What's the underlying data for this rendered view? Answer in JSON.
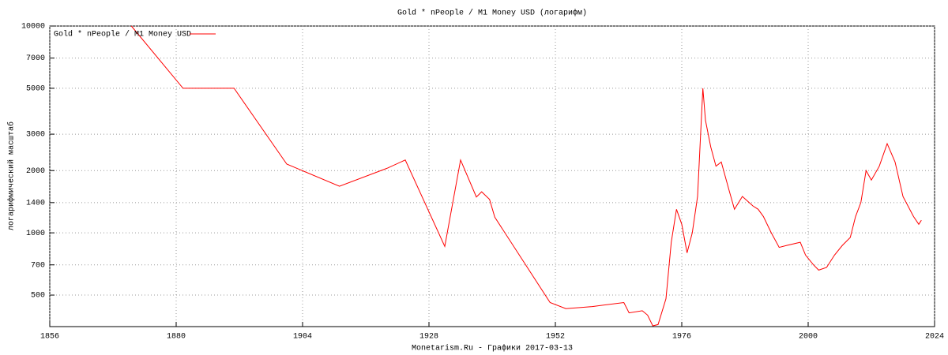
{
  "chart_data": {
    "type": "line",
    "title": "Gold * nPeople / M1 Money USD (логарифм)",
    "y_label": "логарифмический масштаб",
    "footer": "Monetarism.Ru - Графики  2017-03-13",
    "x": [
      1871.5,
      1881.3,
      1891,
      1901,
      1911,
      1920,
      1923.5,
      1931,
      1934,
      1937,
      1938,
      1939.5,
      1940.5,
      1951,
      1954,
      1959,
      1965,
      1966,
      1968.5,
      1969.5,
      1970.5,
      1971.5,
      1973,
      1974,
      1975,
      1976,
      1977,
      1978,
      1979,
      1980,
      1980.5,
      1981.5,
      1982.5,
      1983.5,
      1985,
      1986,
      1987.5,
      1989.5,
      1990.5,
      1991.5,
      1993,
      1994.5,
      1996,
      1998.5,
      1999.5,
      2001,
      2002,
      2003.5,
      2005,
      2006.5,
      2008,
      2009,
      2010,
      2011,
      2012,
      2013.5,
      2015,
      2016.5,
      2018,
      2020,
      2021,
      2021.5
    ],
    "series": [
      {
        "name": "Gold * nPeople / M1 Money USD",
        "color": "#ff0000",
        "values": [
          10000,
          5000,
          5000,
          2150,
          1680,
          2050,
          2250,
          860,
          2250,
          1490,
          1580,
          1450,
          1190,
          460,
          430,
          440,
          460,
          410,
          420,
          400,
          355,
          360,
          480,
          900,
          1300,
          1100,
          800,
          1000,
          1500,
          5000,
          3500,
          2600,
          2100,
          2200,
          1600,
          1300,
          1500,
          1350,
          1300,
          1200,
          1000,
          850,
          870,
          900,
          780,
          700,
          660,
          680,
          780,
          870,
          950,
          1200,
          1400,
          2000,
          1800,
          2100,
          2700,
          2200,
          1500,
          1200,
          1100,
          1150
        ]
      }
    ],
    "xlim": [
      1856,
      2024
    ],
    "xticks": [
      1856,
      1880,
      1904,
      1928,
      1952,
      1976,
      2000,
      2024
    ],
    "ylim": [
      352,
      10000
    ],
    "yticks": [
      500,
      700,
      1000,
      1400,
      2000,
      3000,
      5000,
      7000,
      10000
    ],
    "log_scale": true,
    "grid": true,
    "legend_position": "top-left"
  }
}
